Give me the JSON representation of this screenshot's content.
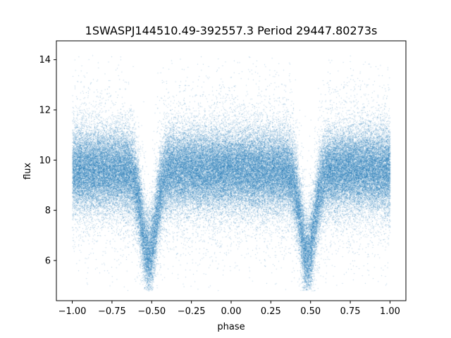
{
  "chart_data": {
    "type": "scatter",
    "title": "1SWASPJ144510.49-392557.3 Period 29447.80273s",
    "xlabel": "phase",
    "ylabel": "flux",
    "xlim": [
      -1.1,
      1.1
    ],
    "ylim": [
      4.4,
      14.75
    ],
    "xticks": [
      -1.0,
      -0.75,
      -0.5,
      -0.25,
      0.0,
      0.25,
      0.5,
      0.75,
      1.0
    ],
    "xtick_labels": [
      "−1.00",
      "−0.75",
      "−0.50",
      "−0.25",
      "0.00",
      "0.25",
      "0.50",
      "0.75",
      "1.00"
    ],
    "yticks": [
      6,
      8,
      10,
      12,
      14
    ],
    "ytick_labels": [
      "6",
      "8",
      "10",
      "12",
      "14"
    ],
    "grid": false,
    "legend": "none",
    "point_color": "#1f77b4",
    "series": [
      {
        "x_range": [
          -1.0,
          1.0
        ],
        "baseline_flux": 9.6,
        "scatter_sigma": 0.8,
        "eclipses": [
          {
            "phase": -0.52,
            "min_flux": 6.2
          },
          {
            "phase": 0.48,
            "min_flux": 6.2
          }
        ],
        "flux_range": [
          4.8,
          14.2
        ]
      }
    ]
  }
}
